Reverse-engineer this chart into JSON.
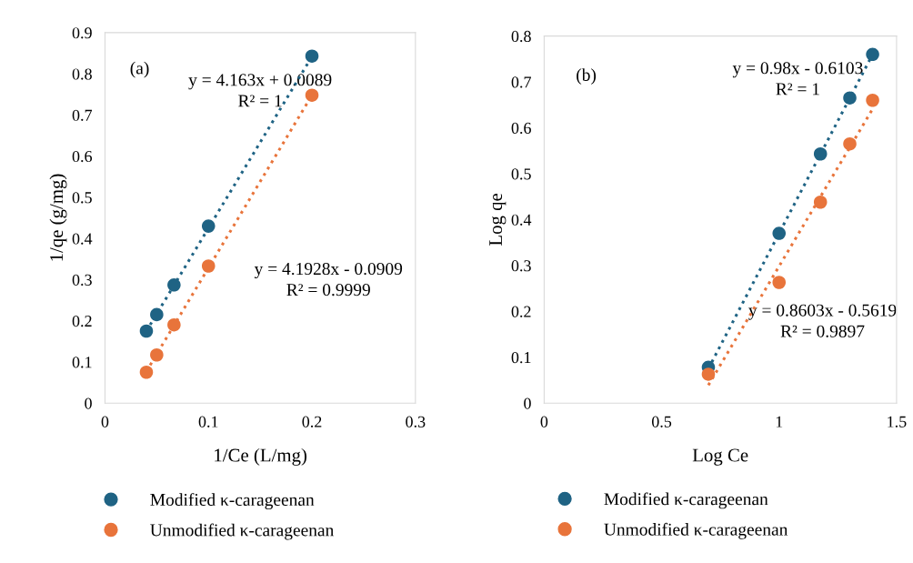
{
  "chart_data": [
    {
      "type": "scatter",
      "xlabel": "1/Ce (L/mg)",
      "ylabel": "1/qe (g/mg)",
      "xlim": [
        0,
        0.3
      ],
      "xticks": [
        0,
        0.1,
        0.2,
        0.3
      ],
      "ylim": [
        0,
        0.9
      ],
      "yticks": [
        0,
        0.1,
        0.2,
        0.3,
        0.4,
        0.5,
        0.6,
        0.7,
        0.8,
        0.9
      ],
      "grid": false,
      "legend": "bottom",
      "marker": "circle",
      "x": [
        0.04,
        0.05,
        0.0667,
        0.1,
        0.2
      ],
      "series": [
        {
          "name": "Modified κ-carageenan",
          "color": "#1f6384",
          "values": [
            0.175,
            0.215,
            0.287,
            0.43,
            0.843
          ]
        },
        {
          "name": "Unmodified κ-carageenan",
          "color": "#e8743b",
          "values": [
            0.075,
            0.117,
            0.19,
            0.333,
            0.748
          ]
        },
        {
          "type": "line",
          "color": "#1f6384",
          "line_style": "dotted",
          "marker": "none",
          "x": [
            0.04,
            0.2
          ],
          "values": [
            0.175,
            0.842
          ]
        },
        {
          "type": "line",
          "color": "#e8743b",
          "line_style": "dotted",
          "marker": "none",
          "x": [
            0.04,
            0.2
          ],
          "values": [
            0.077,
            0.748
          ]
        }
      ],
      "annotations": [
        "(a)",
        "y = 4.163x + 0.0089\nR² = 1",
        "y = 4.1928x - 0.0909\nR² = 0.9999"
      ]
    },
    {
      "type": "scatter",
      "xlabel": "Log Ce",
      "ylabel": "Log qe",
      "xlim": [
        0,
        1.5
      ],
      "xticks": [
        0,
        0.5,
        1,
        1.5
      ],
      "ylim": [
        0,
        0.8
      ],
      "yticks": [
        0,
        0.1,
        0.2,
        0.3,
        0.4,
        0.5,
        0.6,
        0.7,
        0.8
      ],
      "grid": false,
      "legend": "bottom",
      "marker": "circle",
      "x": [
        0.699,
        1.0,
        1.176,
        1.301,
        1.398
      ],
      "series": [
        {
          "name": "Modified κ-carageenan",
          "color": "#1f6384",
          "values": [
            0.078,
            0.37,
            0.543,
            0.665,
            0.76
          ]
        },
        {
          "name": "Unmodified κ-carageenan",
          "color": "#e8743b",
          "values": [
            0.063,
            0.263,
            0.438,
            0.565,
            0.66
          ]
        },
        {
          "type": "line",
          "color": "#1f6384",
          "line_style": "dotted",
          "marker": "none",
          "x": [
            0.699,
            1.398
          ],
          "values": [
            0.075,
            0.76
          ]
        },
        {
          "type": "line",
          "color": "#e8743b",
          "line_style": "dotted",
          "marker": "none",
          "x": [
            0.699,
            1.398
          ],
          "values": [
            0.039,
            0.641
          ]
        }
      ],
      "annotations": [
        "(b)",
        "y = 0.98x - 0.6103\nR² = 1",
        "y = 0.8603x - 0.5619\nR² = 0.9897"
      ]
    }
  ]
}
